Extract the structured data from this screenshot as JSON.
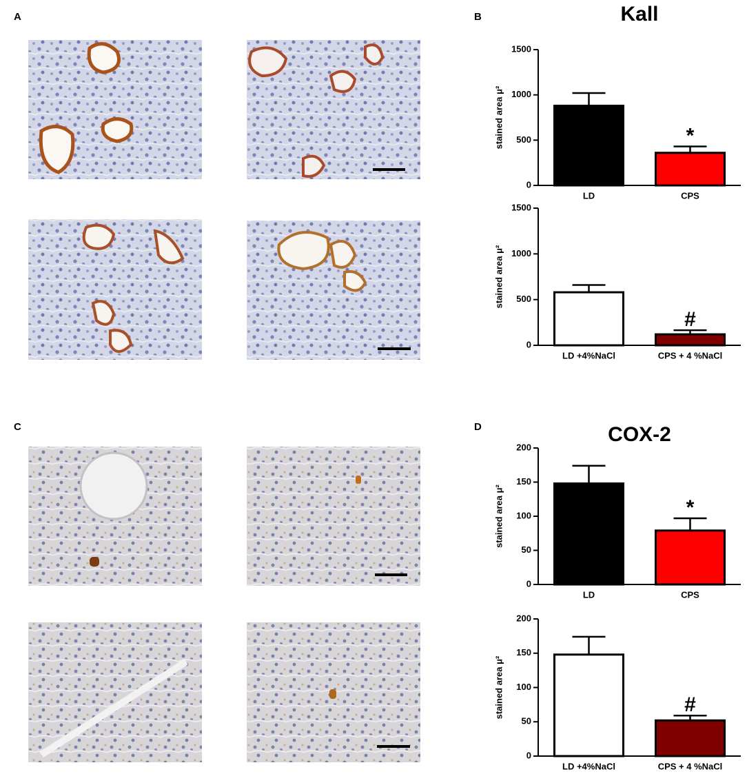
{
  "panel_labels": [
    "A",
    "B",
    "C",
    "D"
  ],
  "chart_data": [
    {
      "type": "bar",
      "title": "Kall",
      "ylabel": "stained area μ²",
      "categories": [
        "LD",
        "CPS"
      ],
      "values": [
        880,
        360
      ],
      "errors": [
        140,
        70
      ],
      "colors": [
        "#000000",
        "#ff0000"
      ],
      "annotations": [
        null,
        "*"
      ],
      "ylim": [
        0,
        1500
      ],
      "yticks": [
        0,
        500,
        1000,
        1500
      ]
    },
    {
      "type": "bar",
      "ylabel": "stained area μ²",
      "categories": [
        "LD +4%NaCl",
        "CPS + 4 %NaCl"
      ],
      "values": [
        580,
        120
      ],
      "errors": [
        80,
        45
      ],
      "colors": [
        "#ffffff",
        "#800000"
      ],
      "annotations": [
        null,
        "#"
      ],
      "ylim": [
        0,
        1500
      ],
      "yticks": [
        0,
        500,
        1000,
        1500
      ]
    },
    {
      "type": "bar",
      "title": "COX-2",
      "ylabel": "stained area μ²",
      "categories": [
        "LD",
        "CPS"
      ],
      "values": [
        148,
        79
      ],
      "errors": [
        26,
        18
      ],
      "colors": [
        "#000000",
        "#ff0000"
      ],
      "annotations": [
        null,
        "*"
      ],
      "ylim": [
        0,
        200
      ],
      "yticks": [
        0,
        50,
        100,
        150,
        200
      ]
    },
    {
      "type": "bar",
      "ylabel": "stained area μ²",
      "categories": [
        "LD +4%NaCl",
        "CPS + 4 %NaCl"
      ],
      "values": [
        148,
        52
      ],
      "errors": [
        26,
        7
      ],
      "colors": [
        "#ffffff",
        "#800000"
      ],
      "annotations": [
        null,
        "#"
      ],
      "ylim": [
        0,
        200
      ],
      "yticks": [
        0,
        50,
        100,
        150,
        200
      ]
    }
  ]
}
